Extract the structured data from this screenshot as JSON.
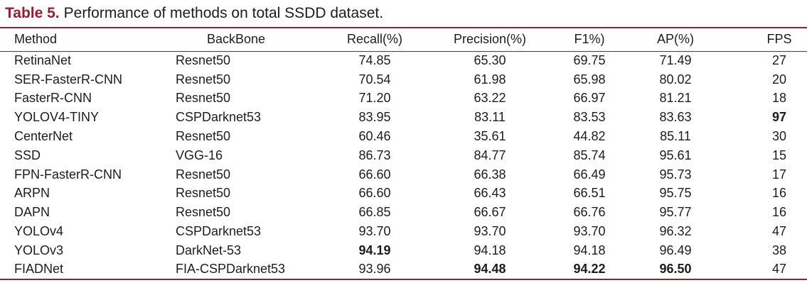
{
  "caption": {
    "label": "Table 5.",
    "text": "Performance of methods on total SSDD dataset."
  },
  "colors": {
    "accent_title": "#9B1B30",
    "accent_rule": "#8B2332",
    "text": "#1C1C1C"
  },
  "table": {
    "columns": [
      {
        "id": "method",
        "label": "Method"
      },
      {
        "id": "backbone",
        "label": "BackBone"
      },
      {
        "id": "recall",
        "label": "Recall(%)"
      },
      {
        "id": "precision",
        "label": "Precision(%)"
      },
      {
        "id": "f1",
        "label": "F1%)"
      },
      {
        "id": "ap",
        "label": "AP(%)"
      },
      {
        "id": "fps",
        "label": "FPS"
      }
    ],
    "rows": [
      {
        "cells": [
          "RetinaNet",
          "Resnet50",
          "74.85",
          "65.30",
          "69.75",
          "71.49",
          "27"
        ]
      },
      {
        "cells": [
          "SER-FasterR-CNN",
          "Resnet50",
          "70.54",
          "61.98",
          "65.98",
          "80.02",
          "20"
        ]
      },
      {
        "cells": [
          "FasterR-CNN",
          "Resnet50",
          "71.20",
          "63.22",
          "66.97",
          "81.21",
          "18"
        ]
      },
      {
        "cells": [
          "YOLOV4-TINY",
          "CSPDarknet53",
          "83.95",
          "83.11",
          "83.53",
          "83.63",
          "97"
        ]
      },
      {
        "cells": [
          "CenterNet",
          "Resnet50",
          "60.46",
          "35.61",
          "44.82",
          "85.11",
          "30"
        ]
      },
      {
        "cells": [
          "SSD",
          "VGG-16",
          "86.73",
          "84.77",
          "85.74",
          "95.61",
          "15"
        ]
      },
      {
        "cells": [
          "FPN-FasterR-CNN",
          "Resnet50",
          "66.60",
          "66.38",
          "66.49",
          "95.73",
          "17"
        ]
      },
      {
        "cells": [
          "ARPN",
          "Resnet50",
          "66.60",
          "66.43",
          "66.51",
          "95.75",
          "16"
        ]
      },
      {
        "cells": [
          "DAPN",
          "Resnet50",
          "66.85",
          "66.67",
          "66.76",
          "95.77",
          "16"
        ]
      },
      {
        "cells": [
          "YOLOv4",
          "CSPDarknet53",
          "93.70",
          "93.70",
          "93.70",
          "96.32",
          "47"
        ]
      },
      {
        "cells": [
          "YOLOv3",
          "DarkNet-53",
          "94.19",
          "94.18",
          "94.18",
          "96.49",
          "38"
        ]
      },
      {
        "cells": [
          "FIADNet",
          "FIA-CSPDarknet53",
          "93.96",
          "94.48",
          "94.22",
          "96.50",
          "47"
        ]
      }
    ],
    "bold_cells": [
      [
        3,
        6
      ],
      [
        10,
        2
      ],
      [
        11,
        3
      ],
      [
        11,
        4
      ],
      [
        11,
        5
      ]
    ]
  }
}
